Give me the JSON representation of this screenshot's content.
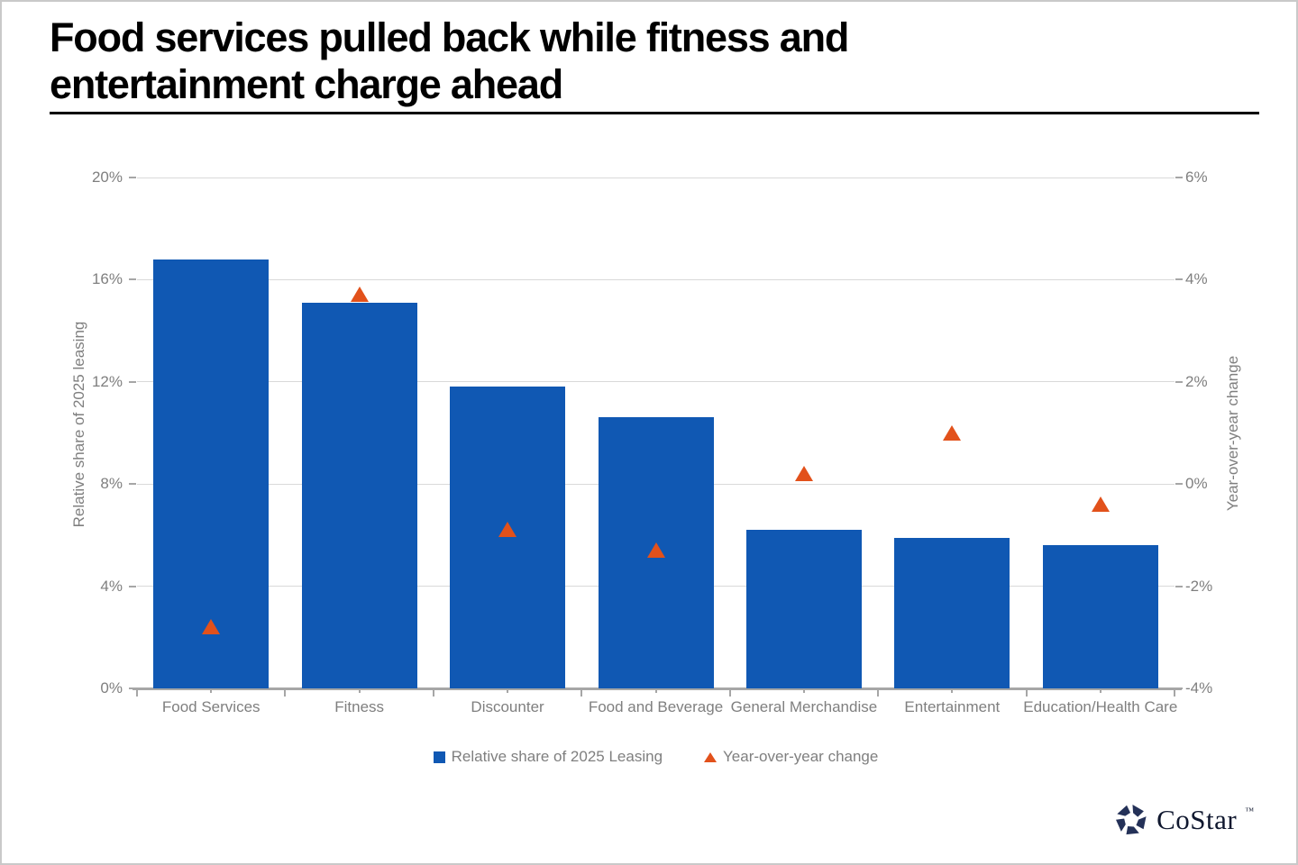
{
  "title": {
    "line1": "Food services pulled back while fitness and",
    "line2": "entertainment charge ahead"
  },
  "chart_data": {
    "type": "bar",
    "categories": [
      "Food Services",
      "Fitness",
      "Discounter",
      "Food and Beverage",
      "General Merchandise",
      "Entertainment",
      "Education/Health Care"
    ],
    "series": [
      {
        "name": "Relative share of 2025 Leasing",
        "render": "bar",
        "axis": "left",
        "color": "#1058B3",
        "values": [
          16.8,
          15.1,
          11.8,
          10.6,
          6.2,
          5.9,
          5.6
        ]
      },
      {
        "name": "Year-over-year change",
        "render": "triangle",
        "axis": "right",
        "color": "#E2511B",
        "values": [
          -2.8,
          3.7,
          -0.9,
          -1.3,
          0.2,
          1.0,
          -0.4
        ]
      }
    ],
    "left_axis": {
      "title": "Relative share of 2025 leasing",
      "min": 0,
      "max": 20,
      "step": 4,
      "tick_labels": [
        "0%",
        "4%",
        "8%",
        "12%",
        "16%",
        "20%"
      ]
    },
    "right_axis": {
      "title": "Year-over-year change",
      "min": -4,
      "max": 6,
      "step": 2,
      "tick_labels": [
        "-4%",
        "-2%",
        "0%",
        "2%",
        "4%",
        "6%"
      ]
    },
    "grid": true,
    "legend_position": "bottom"
  },
  "legend": {
    "items": [
      {
        "label": "Relative share of 2025 Leasing",
        "marker": "square",
        "color": "#1058B3"
      },
      {
        "label": "Year-over-year change",
        "marker": "triangle",
        "color": "#E2511B"
      }
    ]
  },
  "logo": {
    "text": "CoStar",
    "tm": "™"
  },
  "colors": {
    "bar_blue": "#1058B3",
    "marker_orange": "#E2511B",
    "gridline": "#D9D9D9",
    "axis_gray": "#A6A6A6",
    "label_gray": "#7F7F7F",
    "title_black": "#000000",
    "logo_navy": "#243158"
  }
}
